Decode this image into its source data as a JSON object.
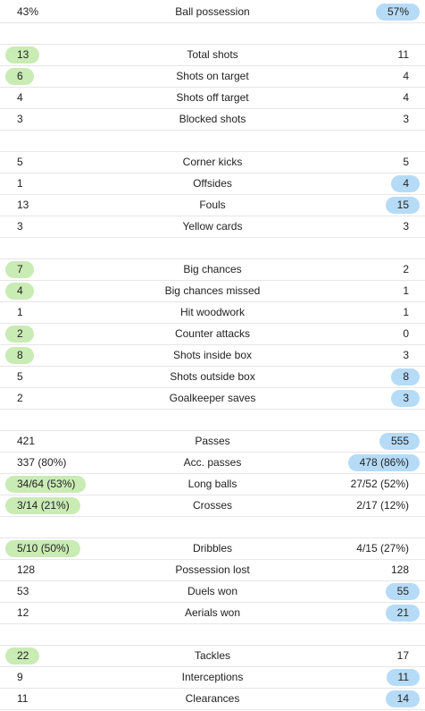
{
  "groups": [
    {
      "rows": [
        {
          "label": "Ball possession",
          "home": "43%",
          "away": "57%",
          "highlight": "away"
        }
      ]
    },
    {
      "rows": [
        {
          "label": "Total shots",
          "home": "13",
          "away": "11",
          "highlight": "home"
        },
        {
          "label": "Shots on target",
          "home": "6",
          "away": "4",
          "highlight": "home"
        },
        {
          "label": "Shots off target",
          "home": "4",
          "away": "4",
          "highlight": "none"
        },
        {
          "label": "Blocked shots",
          "home": "3",
          "away": "3",
          "highlight": "none"
        }
      ]
    },
    {
      "rows": [
        {
          "label": "Corner kicks",
          "home": "5",
          "away": "5",
          "highlight": "none"
        },
        {
          "label": "Offsides",
          "home": "1",
          "away": "4",
          "highlight": "away"
        },
        {
          "label": "Fouls",
          "home": "13",
          "away": "15",
          "highlight": "away"
        },
        {
          "label": "Yellow cards",
          "home": "3",
          "away": "3",
          "highlight": "none"
        }
      ]
    },
    {
      "rows": [
        {
          "label": "Big chances",
          "home": "7",
          "away": "2",
          "highlight": "home"
        },
        {
          "label": "Big chances missed",
          "home": "4",
          "away": "1",
          "highlight": "home"
        },
        {
          "label": "Hit woodwork",
          "home": "1",
          "away": "1",
          "highlight": "none"
        },
        {
          "label": "Counter attacks",
          "home": "2",
          "away": "0",
          "highlight": "home"
        },
        {
          "label": "Shots inside box",
          "home": "8",
          "away": "3",
          "highlight": "home"
        },
        {
          "label": "Shots outside box",
          "home": "5",
          "away": "8",
          "highlight": "away"
        },
        {
          "label": "Goalkeeper saves",
          "home": "2",
          "away": "3",
          "highlight": "away"
        }
      ]
    },
    {
      "rows": [
        {
          "label": "Passes",
          "home": "421",
          "away": "555",
          "highlight": "away"
        },
        {
          "label": "Acc. passes",
          "home": "337 (80%)",
          "away": "478 (86%)",
          "highlight": "away"
        },
        {
          "label": "Long balls",
          "home": "34/64 (53%)",
          "away": "27/52 (52%)",
          "highlight": "home"
        },
        {
          "label": "Crosses",
          "home": "3/14 (21%)",
          "away": "2/17 (12%)",
          "highlight": "home"
        }
      ]
    },
    {
      "rows": [
        {
          "label": "Dribbles",
          "home": "5/10 (50%)",
          "away": "4/15 (27%)",
          "highlight": "home"
        },
        {
          "label": "Possession lost",
          "home": "128",
          "away": "128",
          "highlight": "none"
        },
        {
          "label": "Duels won",
          "home": "53",
          "away": "55",
          "highlight": "away"
        },
        {
          "label": "Aerials won",
          "home": "12",
          "away": "21",
          "highlight": "away"
        }
      ]
    },
    {
      "rows": [
        {
          "label": "Tackles",
          "home": "22",
          "away": "17",
          "highlight": "home"
        },
        {
          "label": "Interceptions",
          "home": "9",
          "away": "11",
          "highlight": "away"
        },
        {
          "label": "Clearances",
          "home": "11",
          "away": "14",
          "highlight": "away"
        }
      ]
    }
  ],
  "colors": {
    "home_highlight": "#c9ebb4",
    "away_highlight": "#b6dbf7",
    "divider": "#e6e6e6",
    "text": "#222222"
  }
}
